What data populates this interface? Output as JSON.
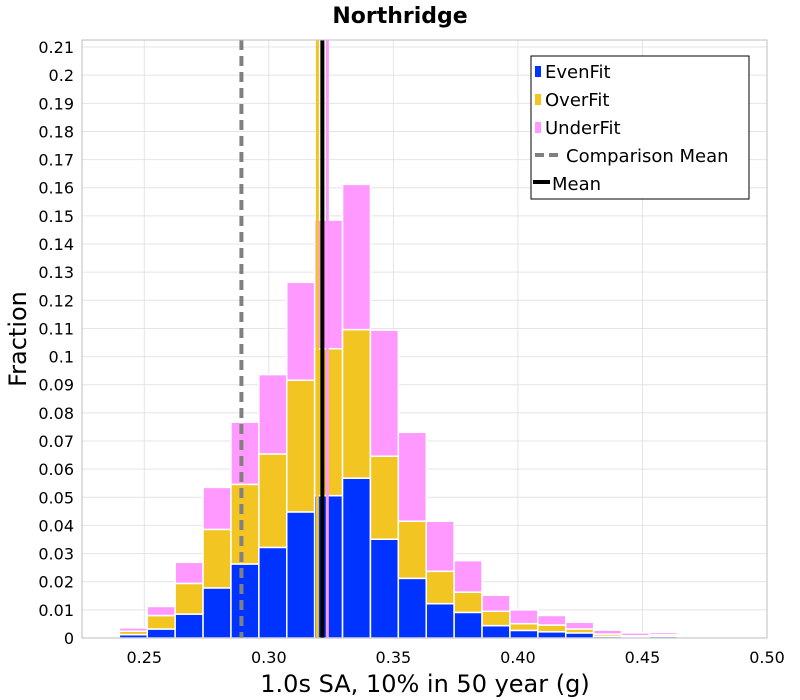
{
  "chart_data": {
    "type": "bar",
    "stacked": true,
    "title": "Northridge",
    "xlabel": "1.0s SA, 10% in 50 year (g)",
    "ylabel": "Fraction",
    "xlim": [
      0.225,
      0.5
    ],
    "ylim": [
      0,
      0.2125
    ],
    "bin_width": 0.0112,
    "x_ticks": [
      "0.25",
      "0.30",
      "0.35",
      "0.40",
      "0.45",
      "0.50"
    ],
    "y_ticks": [
      "0",
      "0.01",
      "0.02",
      "0.03",
      "0.04",
      "0.05",
      "0.06",
      "0.07",
      "0.08",
      "0.09",
      "0.1",
      "0.11",
      "0.12",
      "0.13",
      "0.14",
      "0.15",
      "0.16",
      "0.17",
      "0.18",
      "0.19",
      "0.2",
      "0.21"
    ],
    "bin_centers": [
      0.2344,
      0.2456,
      0.2568,
      0.268,
      0.2792,
      0.2904,
      0.3016,
      0.3128,
      0.324,
      0.3352,
      0.3464,
      0.3576,
      0.3688,
      0.38,
      0.3912,
      0.4024,
      0.4136,
      0.4248,
      0.436,
      0.4472,
      0.4584,
      0.4696,
      0.4808,
      0.492
    ],
    "series": [
      {
        "name": "EvenFit",
        "color": "#0033ff",
        "values": [
          0.0003,
          0.0012,
          0.0032,
          0.0085,
          0.0178,
          0.0263,
          0.0322,
          0.0448,
          0.0506,
          0.0568,
          0.0351,
          0.0212,
          0.0122,
          0.0091,
          0.0044,
          0.0027,
          0.0022,
          0.0018,
          0.0006,
          0.0004,
          0.0006,
          0.0002,
          0.0002,
          0.0002
        ]
      },
      {
        "name": "OverFit",
        "color": "#f2c523",
        "values": [
          0.0002,
          0.0012,
          0.0048,
          0.0109,
          0.0208,
          0.0283,
          0.0332,
          0.0468,
          0.0522,
          0.0528,
          0.0295,
          0.0203,
          0.0115,
          0.0072,
          0.0051,
          0.0024,
          0.0024,
          0.0014,
          0.0008,
          0.0004,
          0.0006,
          0.0002,
          0.0002,
          0.0002
        ]
      },
      {
        "name": "UnderFit",
        "color": "#ff99ff",
        "values": [
          0.0003,
          0.0012,
          0.0032,
          0.0075,
          0.0149,
          0.0221,
          0.0282,
          0.0348,
          0.0457,
          0.0516,
          0.0448,
          0.0316,
          0.0178,
          0.0112,
          0.0057,
          0.0049,
          0.0034,
          0.0024,
          0.0014,
          0.001,
          0.0008,
          0.0002,
          0.0002,
          0.0002
        ]
      }
    ],
    "comparison_mean": {
      "name": "Comparison Mean",
      "x": 0.289,
      "color": "#808080"
    },
    "mean": {
      "name": "Mean",
      "x": 0.3215,
      "color": "#000000"
    },
    "series_means": [
      {
        "name": "OverFit mean",
        "x": 0.3195,
        "color": "#f2c523"
      },
      {
        "name": "UnderFit mean",
        "x": 0.3235,
        "color": "#ff99ff"
      }
    ],
    "legend": [
      "EvenFit",
      "OverFit",
      "UnderFit",
      "Comparison Mean",
      "Mean"
    ],
    "legend_position": "top-right",
    "grid": true
  }
}
